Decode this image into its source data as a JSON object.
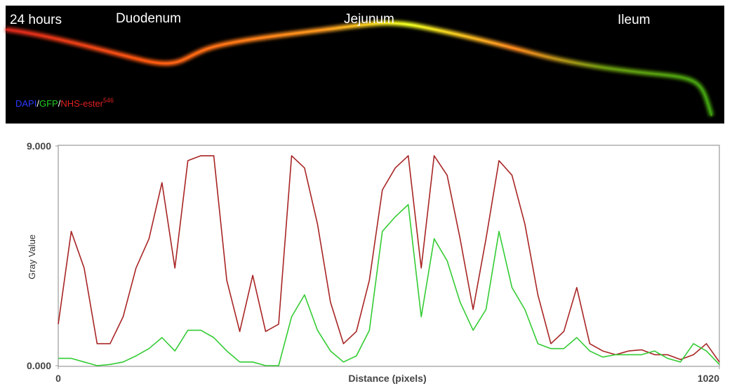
{
  "image": {
    "labels": [
      "24 hours",
      "Duodenum",
      "Jejunum",
      "Ileum"
    ],
    "stain": [
      "DAPI",
      "/",
      "GFP",
      "/",
      "NHS-ester",
      "546"
    ]
  },
  "chart_data": {
    "type": "line",
    "xlabel": "Distance (pixels)",
    "ylabel": "Gray Value",
    "x": [
      0,
      20,
      40,
      60,
      80,
      100,
      120,
      140,
      160,
      180,
      200,
      220,
      240,
      260,
      280,
      300,
      320,
      340,
      360,
      380,
      400,
      420,
      440,
      460,
      480,
      500,
      520,
      540,
      560,
      580,
      600,
      620,
      640,
      660,
      680,
      700,
      720,
      740,
      760,
      780,
      800,
      820,
      840,
      860,
      880,
      900,
      920,
      940,
      960,
      980,
      1000,
      1020
    ],
    "series": [
      {
        "color": "#a82424",
        "values": [
          1.7,
          5.5,
          4.0,
          0.9,
          0.9,
          2.0,
          4.0,
          5.2,
          7.5,
          4.0,
          8.4,
          8.6,
          8.6,
          3.5,
          1.4,
          3.7,
          1.4,
          1.7,
          8.6,
          8.1,
          5.8,
          2.6,
          0.9,
          1.4,
          3.5,
          7.2,
          8.1,
          8.6,
          4.0,
          8.6,
          7.8,
          5.2,
          2.3,
          5.2,
          8.4,
          7.8,
          5.8,
          2.9,
          0.9,
          1.4,
          3.2,
          0.9,
          0.6,
          0.45,
          0.6,
          0.65,
          0.45,
          0.45,
          0.25,
          0.45,
          0.9,
          0.15
        ]
      },
      {
        "color": "#33cc33",
        "values": [
          0.3,
          0.3,
          0.15,
          0,
          0.05,
          0.15,
          0.4,
          0.7,
          1.15,
          0.6,
          1.45,
          1.45,
          1.15,
          0.6,
          0.15,
          0.15,
          0,
          0,
          2.0,
          2.9,
          1.45,
          0.6,
          0.15,
          0.4,
          1.45,
          5.5,
          6.1,
          6.6,
          2.0,
          5.2,
          4.3,
          2.6,
          1.45,
          2.3,
          5.5,
          3.2,
          2.3,
          0.9,
          0.7,
          0.7,
          1.15,
          0.6,
          0.35,
          0.45,
          0.45,
          0.45,
          0.6,
          0.3,
          0.15,
          0.9,
          0.6,
          0.05
        ]
      }
    ],
    "xlim": [
      0,
      1020
    ],
    "xticks": [
      0,
      1020
    ],
    "ylim": [
      0,
      9
    ],
    "yticks": [
      {
        "value": 0,
        "label": "0.000"
      },
      {
        "value": 9,
        "label": "9.000"
      }
    ]
  }
}
